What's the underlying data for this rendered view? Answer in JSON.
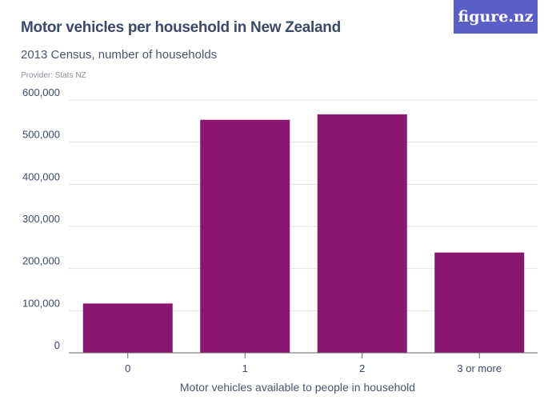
{
  "header": {
    "title": "Motor vehicles per household in New Zealand",
    "subtitle": "2013 Census, number of households",
    "provider": "Provider: Stats NZ",
    "logo": "figure.nz"
  },
  "colors": {
    "bar": "#89166f",
    "logo_bg": "#5a5fc8",
    "grid": "#e3e3e3"
  },
  "chart_data": {
    "type": "bar",
    "title": "Motor vehicles per household in New Zealand",
    "subtitle": "2013 Census, number of households",
    "xlabel": "Motor vehicles available to people in household",
    "ylabel": "",
    "categories": [
      "0",
      "1",
      "2",
      "3 or more"
    ],
    "values": [
      117000,
      553000,
      566000,
      238000
    ],
    "ylim": [
      0,
      600000
    ],
    "yticks": [
      "0",
      "100,000",
      "200,000",
      "300,000",
      "400,000",
      "500,000",
      "600,000"
    ],
    "grid": true
  }
}
